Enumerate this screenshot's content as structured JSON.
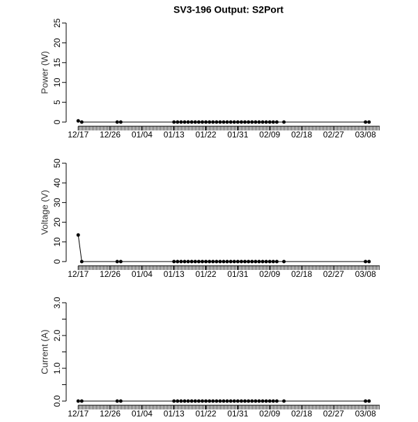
{
  "chart_data": [
    {
      "type": "line",
      "title": "SV3-196 Output: S2Port",
      "y_label": "Power (W)",
      "color": "#000000",
      "x": [
        "12/17",
        "12/18",
        "12/28",
        "12/29",
        "01/13",
        "01/14",
        "01/15",
        "01/16",
        "01/17",
        "01/18",
        "01/19",
        "01/20",
        "01/21",
        "01/22",
        "01/23",
        "01/24",
        "01/25",
        "01/26",
        "01/27",
        "01/28",
        "01/29",
        "01/30",
        "01/31",
        "02/01",
        "02/02",
        "02/03",
        "02/04",
        "02/05",
        "02/06",
        "02/07",
        "02/08",
        "02/09",
        "02/10",
        "02/11",
        "02/13",
        "03/08",
        "03/09"
      ],
      "values": [
        0.3,
        0,
        0,
        0,
        0,
        0,
        0,
        0,
        0,
        0,
        0,
        0,
        0,
        0,
        0,
        0,
        0,
        0,
        0,
        0,
        0,
        0,
        0,
        0,
        0,
        0,
        0,
        0,
        0,
        0,
        0,
        0,
        0,
        0,
        0,
        0,
        0
      ],
      "xlim": [
        "12/14",
        "03/12"
      ],
      "xticks": [
        "12/17",
        "12/26",
        "01/04",
        "01/13",
        "01/22",
        "01/31",
        "02/09",
        "02/18",
        "02/27",
        "03/08"
      ],
      "ylim": [
        0,
        25
      ],
      "yticks": [
        0,
        5,
        10,
        15,
        20,
        25
      ]
    },
    {
      "type": "line",
      "y_label": "Voltage (V)",
      "color": "#000000",
      "x": [
        "12/17",
        "12/18",
        "12/28",
        "12/29",
        "01/13",
        "01/14",
        "01/15",
        "01/16",
        "01/17",
        "01/18",
        "01/19",
        "01/20",
        "01/21",
        "01/22",
        "01/23",
        "01/24",
        "01/25",
        "01/26",
        "01/27",
        "01/28",
        "01/29",
        "01/30",
        "01/31",
        "02/01",
        "02/02",
        "02/03",
        "02/04",
        "02/05",
        "02/06",
        "02/07",
        "02/08",
        "02/09",
        "02/10",
        "02/11",
        "02/13",
        "03/08",
        "03/09"
      ],
      "values": [
        13.5,
        0,
        0,
        0,
        0,
        0,
        0,
        0,
        0,
        0,
        0,
        0,
        0,
        0,
        0,
        0,
        0,
        0,
        0,
        0,
        0,
        0,
        0,
        0,
        0,
        0,
        0,
        0,
        0,
        0,
        0,
        0,
        0,
        0,
        0,
        0,
        0
      ],
      "xlim": [
        "12/14",
        "03/12"
      ],
      "xticks": [
        "12/17",
        "12/26",
        "01/04",
        "01/13",
        "01/22",
        "01/31",
        "02/09",
        "02/18",
        "02/27",
        "03/08"
      ],
      "ylim": [
        0,
        50
      ],
      "yticks": [
        0,
        10,
        20,
        30,
        40,
        50
      ]
    },
    {
      "type": "line",
      "y_label": "Current (A)",
      "color": "#000000",
      "x": [
        "12/17",
        "12/18",
        "12/28",
        "12/29",
        "01/13",
        "01/14",
        "01/15",
        "01/16",
        "01/17",
        "01/18",
        "01/19",
        "01/20",
        "01/21",
        "01/22",
        "01/23",
        "01/24",
        "01/25",
        "01/26",
        "01/27",
        "01/28",
        "01/29",
        "01/30",
        "01/31",
        "02/01",
        "02/02",
        "02/03",
        "02/04",
        "02/05",
        "02/06",
        "02/07",
        "02/08",
        "02/09",
        "02/10",
        "02/11",
        "02/13",
        "03/08",
        "03/09"
      ],
      "values": [
        0,
        0,
        0,
        0,
        0,
        0,
        0,
        0,
        0,
        0,
        0,
        0,
        0,
        0,
        0,
        0,
        0,
        0,
        0,
        0,
        0,
        0,
        0,
        0,
        0,
        0,
        0,
        0,
        0,
        0,
        0,
        0,
        0,
        0,
        0,
        0,
        0
      ],
      "xlim": [
        "12/14",
        "03/12"
      ],
      "xticks": [
        "12/17",
        "12/26",
        "01/04",
        "01/13",
        "01/22",
        "01/31",
        "02/09",
        "02/18",
        "02/27",
        "03/08"
      ],
      "ylim": [
        0,
        3
      ],
      "yticks": [
        {
          "value": 0,
          "label": "0.0"
        },
        {
          "value": 1,
          "label": "1.0"
        },
        {
          "value": 2,
          "label": "2.0"
        },
        {
          "value": 3,
          "label": "3.0"
        }
      ],
      "minor_yticks": [
        0.5,
        1.5,
        2.5
      ]
    }
  ]
}
